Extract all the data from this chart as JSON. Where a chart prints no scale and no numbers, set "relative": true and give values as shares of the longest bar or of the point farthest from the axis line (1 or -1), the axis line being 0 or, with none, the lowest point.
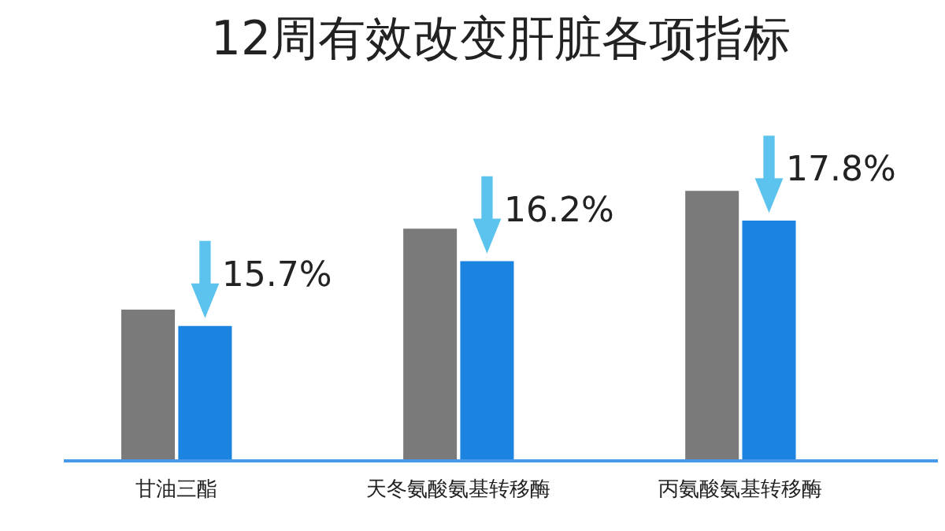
{
  "chart_data": {
    "type": "bar",
    "title": "12周有效改变肝脏各项指标",
    "categories": [
      "甘油三酯",
      "天冬氨酸氨基转移酶",
      "丙氨酸氨基转移酶"
    ],
    "relative": true,
    "series": [
      {
        "color": "#7a7a7a",
        "values": [
          0.56,
          0.86,
          1
        ]
      },
      {
        "color": "#1a84e0",
        "values": [
          0.5,
          0.74,
          0.89
        ]
      }
    ],
    "annotations": [
      {
        "text": "15.7%",
        "x": "甘油三酯",
        "y": 0.5
      },
      {
        "text": "16.2%",
        "x": "天冬氨酸氨基转移酶",
        "y": 0.74
      },
      {
        "text": "17.8%",
        "x": "丙氨酸氨基转移酶",
        "y": 0.89
      }
    ]
  }
}
